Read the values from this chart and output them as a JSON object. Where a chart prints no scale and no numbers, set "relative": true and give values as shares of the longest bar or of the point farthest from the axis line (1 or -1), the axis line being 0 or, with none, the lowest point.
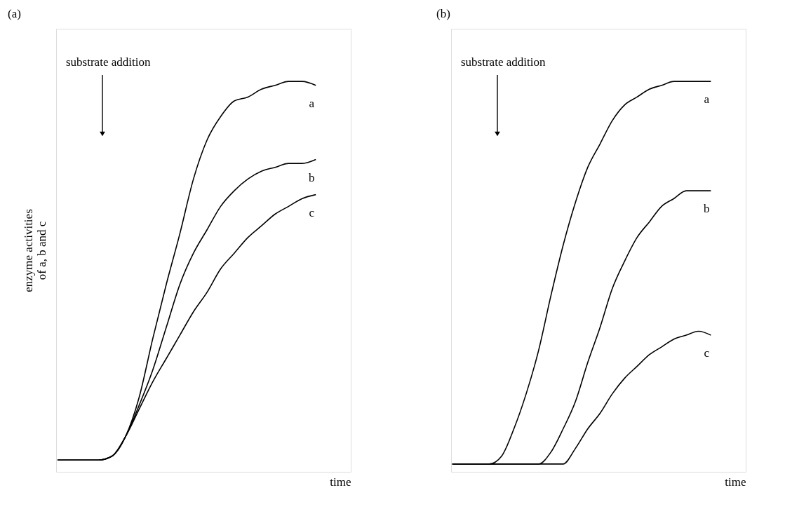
{
  "chart_data": [
    {
      "type": "line",
      "title": "(a)",
      "xlabel": "time",
      "ylabel": "enzyme activities\nof a, b and c",
      "relative": true,
      "legend": false,
      "annotations": [
        "substrate addition"
      ],
      "categories": [
        null,
        null,
        null,
        null,
        null,
        null,
        null,
        null,
        null,
        null,
        null,
        null,
        null,
        null,
        null,
        null,
        null,
        null,
        null,
        null
      ],
      "series": [
        {
          "name": "a",
          "color": "#000000",
          "values": [
            0.03,
            0.03,
            0.03,
            0.03,
            0.04,
            0.09,
            0.19,
            0.34,
            0.48,
            0.61,
            0.75,
            0.85,
            0.91,
            0.95,
            0.96,
            0.98,
            0.99,
            1.0,
            1.0,
            0.99
          ]
        },
        {
          "name": "b",
          "color": "#000000",
          "values": [
            0.03,
            0.03,
            0.03,
            0.03,
            0.04,
            0.09,
            0.17,
            0.26,
            0.37,
            0.48,
            0.56,
            0.62,
            0.68,
            0.72,
            0.75,
            0.77,
            0.78,
            0.79,
            0.79,
            0.8
          ]
        },
        {
          "name": "c",
          "color": "#000000",
          "values": [
            0.03,
            0.03,
            0.03,
            0.03,
            0.04,
            0.09,
            0.16,
            0.23,
            0.29,
            0.35,
            0.41,
            0.46,
            0.52,
            0.56,
            0.6,
            0.63,
            0.66,
            0.68,
            0.7,
            0.71
          ]
        }
      ]
    },
    {
      "type": "line",
      "title": "(b)",
      "xlabel": "time",
      "relative": true,
      "legend": false,
      "annotations": [
        "substrate addition"
      ],
      "categories": [
        null,
        null,
        null,
        null,
        null,
        null,
        null,
        null,
        null,
        null,
        null,
        null,
        null,
        null,
        null,
        null,
        null,
        null,
        null,
        null,
        null,
        null
      ],
      "series": [
        {
          "name": "a",
          "color": "#000000",
          "values": [
            0.02,
            0.02,
            0.02,
            0.02,
            0.04,
            0.11,
            0.2,
            0.31,
            0.45,
            0.58,
            0.69,
            0.78,
            0.84,
            0.9,
            0.94,
            0.96,
            0.98,
            0.99,
            1.0,
            1.0,
            1.0,
            1.0
          ]
        },
        {
          "name": "b",
          "color": "#000000",
          "values": [
            0.02,
            0.02,
            0.02,
            0.02,
            0.02,
            0.02,
            0.02,
            0.02,
            0.05,
            0.11,
            0.18,
            0.28,
            0.37,
            0.47,
            0.54,
            0.6,
            0.64,
            0.68,
            0.7,
            0.72,
            0.72,
            0.72
          ]
        },
        {
          "name": "c",
          "color": "#000000",
          "values": [
            0.02,
            0.02,
            0.02,
            0.02,
            0.02,
            0.02,
            0.02,
            0.02,
            0.02,
            0.02,
            0.06,
            0.11,
            0.15,
            0.2,
            0.24,
            0.27,
            0.3,
            0.32,
            0.34,
            0.35,
            0.36,
            0.35
          ]
        }
      ]
    }
  ]
}
